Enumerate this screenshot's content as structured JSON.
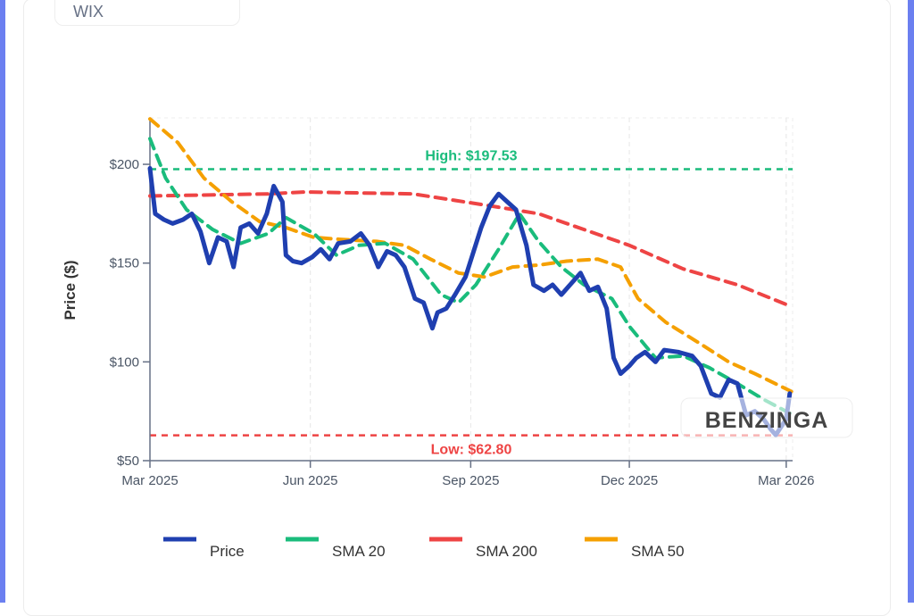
{
  "ticker": "WIX",
  "watermark": "BENZINGA",
  "colors": {
    "price": "#1f3fb0",
    "sma20": "#1abc7c",
    "sma200": "#ee4444",
    "sma50": "#f5a000",
    "accent": "#6b7ff0"
  },
  "chart_data": {
    "type": "line",
    "ylabel": "Price ($)",
    "ylim": [
      50,
      225
    ],
    "xlim": [
      "2025-03-01",
      "2026-03-05"
    ],
    "x_ticks": [
      {
        "date": "2025-03-01",
        "label": "Mar 2025"
      },
      {
        "date": "2025-06-01",
        "label": "Jun 2025"
      },
      {
        "date": "2025-09-01",
        "label": "Sep 2025"
      },
      {
        "date": "2025-12-01",
        "label": "Dec 2025"
      },
      {
        "date": "2026-03-01",
        "label": "Mar 2026"
      }
    ],
    "y_ticks": [
      {
        "value": 50,
        "label": "$50"
      },
      {
        "value": 100,
        "label": "$100"
      },
      {
        "value": 150,
        "label": "$150"
      },
      {
        "value": 200,
        "label": "$200"
      }
    ],
    "grid": true,
    "legend": "bottom",
    "reference_lines": [
      {
        "name": "high",
        "value": 197.53,
        "label": "High: $197.53",
        "color": "#1abc7c"
      },
      {
        "name": "low",
        "value": 62.8,
        "label": "Low: $62.80",
        "color": "#ee4444"
      }
    ],
    "series": [
      {
        "name": "Price",
        "key": "price",
        "dash": false,
        "points": [
          [
            "2025-03-01",
            198
          ],
          [
            "2025-03-04",
            175
          ],
          [
            "2025-03-09",
            172
          ],
          [
            "2025-03-14",
            170
          ],
          [
            "2025-03-20",
            172
          ],
          [
            "2025-03-25",
            175
          ],
          [
            "2025-03-30",
            166
          ],
          [
            "2025-04-04",
            150
          ],
          [
            "2025-04-09",
            163
          ],
          [
            "2025-04-14",
            161
          ],
          [
            "2025-04-18",
            148
          ],
          [
            "2025-04-22",
            168
          ],
          [
            "2025-04-27",
            170
          ],
          [
            "2025-05-02",
            165
          ],
          [
            "2025-05-07",
            175
          ],
          [
            "2025-05-11",
            189
          ],
          [
            "2025-05-16",
            181
          ],
          [
            "2025-05-18",
            154
          ],
          [
            "2025-05-22",
            151
          ],
          [
            "2025-05-27",
            150
          ],
          [
            "2025-06-02",
            153
          ],
          [
            "2025-06-07",
            157
          ],
          [
            "2025-06-12",
            152
          ],
          [
            "2025-06-17",
            160
          ],
          [
            "2025-06-24",
            161
          ],
          [
            "2025-06-30",
            165
          ],
          [
            "2025-07-05",
            159
          ],
          [
            "2025-07-10",
            148
          ],
          [
            "2025-07-15",
            156
          ],
          [
            "2025-07-20",
            154
          ],
          [
            "2025-07-25",
            148
          ],
          [
            "2025-07-31",
            132
          ],
          [
            "2025-08-05",
            130
          ],
          [
            "2025-08-10",
            117
          ],
          [
            "2025-08-13",
            125
          ],
          [
            "2025-08-18",
            127
          ],
          [
            "2025-08-23",
            134
          ],
          [
            "2025-08-29",
            143
          ],
          [
            "2025-09-02",
            154
          ],
          [
            "2025-09-07",
            168
          ],
          [
            "2025-09-12",
            179
          ],
          [
            "2025-09-17",
            185
          ],
          [
            "2025-09-22",
            181
          ],
          [
            "2025-09-27",
            177
          ],
          [
            "2025-10-03",
            159
          ],
          [
            "2025-10-07",
            139
          ],
          [
            "2025-10-13",
            136
          ],
          [
            "2025-10-18",
            139
          ],
          [
            "2025-10-23",
            134
          ],
          [
            "2025-10-28",
            139
          ],
          [
            "2025-11-03",
            145
          ],
          [
            "2025-11-08",
            136
          ],
          [
            "2025-11-13",
            138
          ],
          [
            "2025-11-18",
            127
          ],
          [
            "2025-11-22",
            102
          ],
          [
            "2025-11-26",
            94
          ],
          [
            "2025-12-01",
            98
          ],
          [
            "2025-12-05",
            102
          ],
          [
            "2025-12-10",
            105
          ],
          [
            "2025-12-16",
            100
          ],
          [
            "2025-12-21",
            106
          ],
          [
            "2025-12-29",
            105
          ],
          [
            "2026-01-06",
            103
          ],
          [
            "2026-01-11",
            98
          ],
          [
            "2026-01-17",
            84
          ],
          [
            "2026-01-22",
            82
          ],
          [
            "2026-01-27",
            91
          ],
          [
            "2026-02-01",
            89
          ],
          [
            "2026-02-06",
            73
          ],
          [
            "2026-02-11",
            75
          ],
          [
            "2026-02-16",
            71
          ],
          [
            "2026-02-20",
            66
          ],
          [
            "2026-02-23",
            63
          ],
          [
            "2026-02-26",
            67
          ],
          [
            "2026-03-01",
            71
          ],
          [
            "2026-03-03",
            84
          ]
        ]
      },
      {
        "name": "SMA 20",
        "key": "sma20",
        "dash": true,
        "points": [
          [
            "2025-03-01",
            213
          ],
          [
            "2025-03-10",
            193
          ],
          [
            "2025-03-22",
            177
          ],
          [
            "2025-04-06",
            167
          ],
          [
            "2025-04-22",
            160
          ],
          [
            "2025-05-08",
            165
          ],
          [
            "2025-05-18",
            173
          ],
          [
            "2025-06-03",
            165
          ],
          [
            "2025-06-16",
            154
          ],
          [
            "2025-06-29",
            159
          ],
          [
            "2025-07-14",
            160
          ],
          [
            "2025-07-30",
            152
          ],
          [
            "2025-08-15",
            134
          ],
          [
            "2025-08-25",
            130
          ],
          [
            "2025-09-04",
            139
          ],
          [
            "2025-09-17",
            157
          ],
          [
            "2025-09-29",
            175
          ],
          [
            "2025-10-10",
            161
          ],
          [
            "2025-10-23",
            148
          ],
          [
            "2025-11-05",
            139
          ],
          [
            "2025-11-21",
            132
          ],
          [
            "2025-12-01",
            118
          ],
          [
            "2025-12-16",
            102
          ],
          [
            "2026-01-01",
            103
          ],
          [
            "2026-01-16",
            97
          ],
          [
            "2026-02-01",
            89
          ],
          [
            "2026-02-16",
            81
          ],
          [
            "2026-03-03",
            74
          ]
        ]
      },
      {
        "name": "SMA 200",
        "key": "sma200",
        "dash": true,
        "points": [
          [
            "2025-03-01",
            184
          ],
          [
            "2025-05-08",
            185
          ],
          [
            "2025-05-29",
            186
          ],
          [
            "2025-07-30",
            185
          ],
          [
            "2025-09-12",
            179
          ],
          [
            "2025-10-10",
            175
          ],
          [
            "2025-12-01",
            159
          ],
          [
            "2026-01-01",
            147
          ],
          [
            "2026-02-01",
            139
          ],
          [
            "2026-03-04",
            128
          ]
        ]
      },
      {
        "name": "SMA 50",
        "key": "sma50",
        "dash": true,
        "points": [
          [
            "2025-03-01",
            223
          ],
          [
            "2025-03-17",
            211
          ],
          [
            "2025-04-01",
            193
          ],
          [
            "2025-04-17",
            181
          ],
          [
            "2025-05-03",
            171
          ],
          [
            "2025-05-18",
            168
          ],
          [
            "2025-06-03",
            163
          ],
          [
            "2025-06-18",
            162
          ],
          [
            "2025-07-09",
            161
          ],
          [
            "2025-07-25",
            159
          ],
          [
            "2025-08-09",
            152
          ],
          [
            "2025-08-25",
            145
          ],
          [
            "2025-09-09",
            143
          ],
          [
            "2025-09-25",
            148
          ],
          [
            "2025-10-10",
            149
          ],
          [
            "2025-10-26",
            151
          ],
          [
            "2025-11-13",
            152
          ],
          [
            "2025-11-26",
            148
          ],
          [
            "2025-12-06",
            132
          ],
          [
            "2025-12-22",
            120
          ],
          [
            "2026-01-11",
            109
          ],
          [
            "2026-01-27",
            100
          ],
          [
            "2026-02-11",
            94
          ],
          [
            "2026-03-04",
            85
          ]
        ]
      }
    ]
  }
}
